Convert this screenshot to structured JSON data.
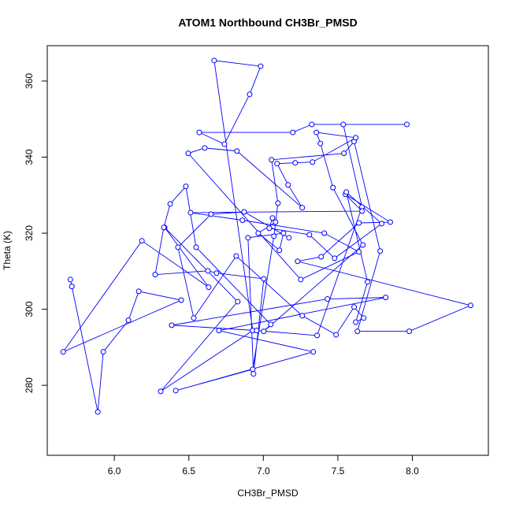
{
  "chart_data": {
    "type": "line_points",
    "title": "ATOM1 Northbound CH3Br_PMSD",
    "x_label": "CH3Br_PMSD",
    "y_label": "Theta (K)",
    "color": "#0000ff",
    "xlim": [
      5.55,
      8.51
    ],
    "ylim": [
      261.6,
      369.3
    ],
    "xticks": [
      {
        "value": 6,
        "label": "6.0"
      },
      {
        "value": 6.5,
        "label": "6.5"
      },
      {
        "value": 7,
        "label": "7.0"
      },
      {
        "value": 7.5,
        "label": "7.5"
      },
      {
        "value": 8,
        "label": "8.0"
      }
    ],
    "yticks": [
      280,
      300,
      320,
      340,
      360
    ],
    "x": [
      5.705,
      5.715,
      5.889,
      5.926,
      6.095,
      6.164,
      6.449,
      5.657,
      6.185,
      6.633,
      6.338,
      6.828,
      6.311,
      6.929,
      6.67,
      6.982,
      6.908,
      6.739,
      6.57,
      7.198,
      7.325,
      7.963,
      7.536,
      7.662,
      7.361,
      6.955,
      6.385,
      7.43,
      7.821,
      6.702,
      7.335,
      6.412,
      6.929,
      7.071,
      7.098,
      7.055,
      7.541,
      7.609,
      7.784,
      7.631,
      7.979,
      8.391,
      7.23,
      7.388,
      7.641,
      7.852,
      7.551,
      7.662,
      6.512,
      6.86,
      7.409,
      7.641,
      7.251,
      6.496,
      6.607,
      6.823,
      7.261,
      7.166,
      7.092,
      7.214,
      7.33,
      7.62,
      7.356,
      7.383,
      7.467,
      7.668,
      7.003,
      7.05,
      6.549,
      6.48,
      6.375,
      6.332,
      6.274,
      6.628,
      6.686,
      7.003,
      6.934,
      6.897,
      7.135,
      7.108,
      6.966,
      7.082,
      7.061,
      7.04,
      7.309,
      7.478,
      7.794,
      7.557,
      7.699,
      7.62,
      7.673,
      7.609,
      7.488,
      7.261,
      6.818,
      6.533,
      6.427,
      6.649,
      6.871,
      7.172
    ],
    "y": [
      307.8,
      306.0,
      273.0,
      288.8,
      297.1,
      304.7,
      302.4,
      288.8,
      318.0,
      305.8,
      321.5,
      302.0,
      278.4,
      294.4,
      365.4,
      363.9,
      356.5,
      343.4,
      346.5,
      346.5,
      348.6,
      348.6,
      348.6,
      326.9,
      293.1,
      294.4,
      295.8,
      302.7,
      303.1,
      294.4,
      288.8,
      278.6,
      284.2,
      319.2,
      327.9,
      339.3,
      341.0,
      344.1,
      315.3,
      294.2,
      294.2,
      301.0,
      312.6,
      313.8,
      322.7,
      322.9,
      330.2,
      325.8,
      325.4,
      323.4,
      320.0,
      315.1,
      307.8,
      341.0,
      342.4,
      341.6,
      326.7,
      332.7,
      338.3,
      338.5,
      338.7,
      345.1,
      346.5,
      343.6,
      332.0,
      316.9,
      294.2,
      296.0,
      316.3,
      332.3,
      327.7,
      321.5,
      309.1,
      310.1,
      309.5,
      308.0,
      283.0,
      318.8,
      320.0,
      315.5,
      320.0,
      322.9,
      324.0,
      321.3,
      319.6,
      313.4,
      322.5,
      330.8,
      307.2,
      296.6,
      297.7,
      300.6,
      293.3,
      298.3,
      314.0,
      297.7,
      316.3,
      325.0,
      325.6,
      318.8
    ]
  }
}
